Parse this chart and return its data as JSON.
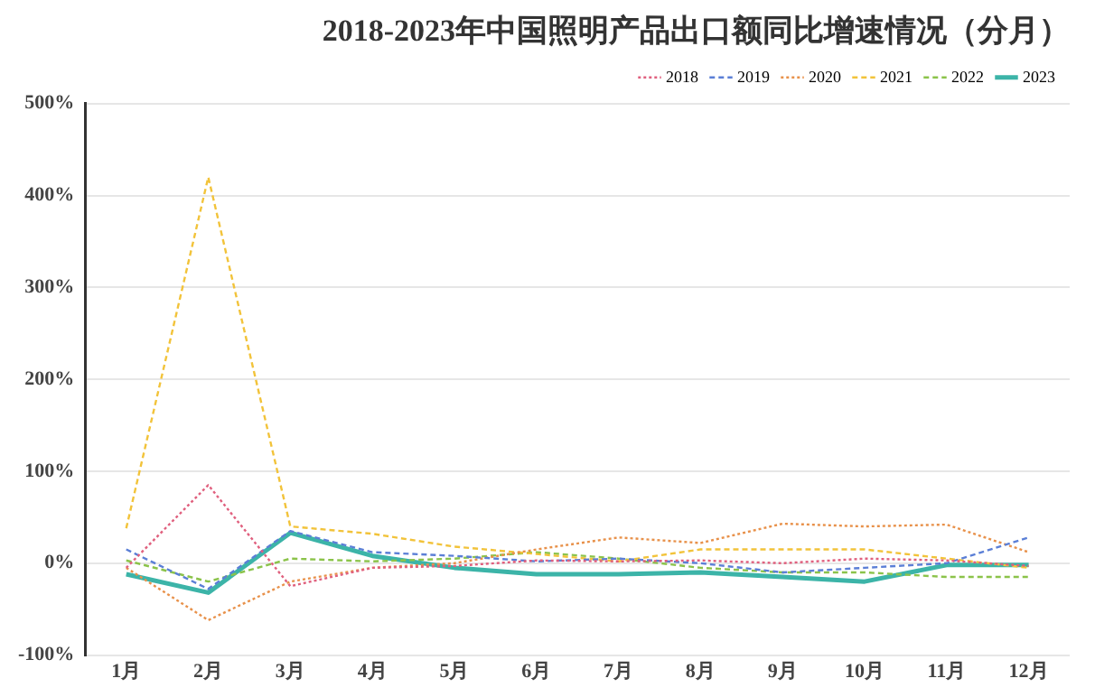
{
  "chart_data": {
    "type": "line",
    "title": "2018-2023年中国照明产品出口额同比增速情况（分月）",
    "categories": [
      "1月",
      "2月",
      "3月",
      "4月",
      "5月",
      "6月",
      "7月",
      "8月",
      "9月",
      "10月",
      "11月",
      "12月"
    ],
    "series": [
      {
        "name": "2018",
        "color": "#e0607e",
        "line_style": "dotted",
        "values": [
          -5,
          85,
          -25,
          -5,
          -3,
          3,
          2,
          3,
          0,
          5,
          3,
          -3
        ]
      },
      {
        "name": "2019",
        "color": "#5b7fd6",
        "line_style": "dashed",
        "values": [
          15,
          -28,
          35,
          12,
          8,
          2,
          5,
          0,
          -10,
          -5,
          0,
          28
        ]
      },
      {
        "name": "2020",
        "color": "#e8914a",
        "line_style": "dotted",
        "values": [
          -5,
          -62,
          -20,
          -5,
          0,
          15,
          28,
          22,
          43,
          40,
          42,
          12
        ]
      },
      {
        "name": "2021",
        "color": "#f2c33a",
        "line_style": "dashed",
        "values": [
          38,
          420,
          40,
          32,
          18,
          10,
          2,
          15,
          15,
          15,
          5,
          -5
        ]
      },
      {
        "name": "2022",
        "color": "#8bc34a",
        "line_style": "dashed",
        "values": [
          3,
          -20,
          5,
          2,
          5,
          12,
          5,
          -5,
          -10,
          -10,
          -15,
          -15
        ]
      },
      {
        "name": "2023",
        "color": "#3cb4a8",
        "line_style": "solid",
        "values": [
          -12,
          -32,
          33,
          8,
          -5,
          -12,
          -12,
          -10,
          -15,
          -20,
          -2,
          -2
        ]
      }
    ],
    "ylim": [
      -100,
      500
    ],
    "yticks": [
      {
        "value": -100,
        "label": "-100%"
      },
      {
        "value": 0,
        "label": "0%"
      },
      {
        "value": 100,
        "label": "100%"
      },
      {
        "value": 200,
        "label": "200%"
      },
      {
        "value": 300,
        "label": "300%"
      },
      {
        "value": 400,
        "label": "400%"
      },
      {
        "value": 500,
        "label": "500%"
      }
    ],
    "grid": "y",
    "legend": "top right",
    "marker": "none"
  }
}
